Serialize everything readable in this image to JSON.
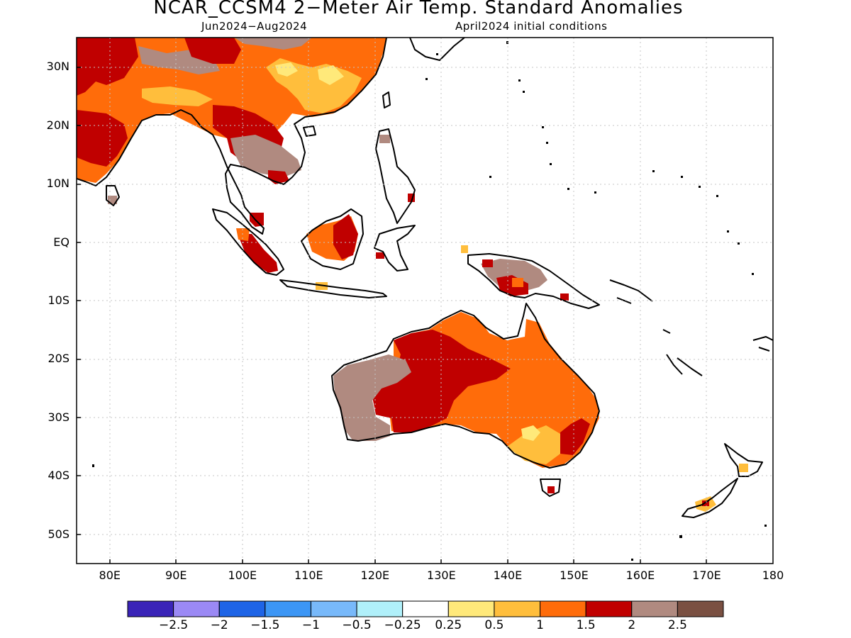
{
  "title": "NCAR_CCSM4 2−Meter Air Temp. Standard Anomalies",
  "subtitle_left": "Jun2024−Aug2024",
  "subtitle_right": "April2024 initial conditions",
  "map": {
    "projection": "equirectangular",
    "lon_range": [
      75,
      180
    ],
    "lat_range": [
      -55,
      35
    ],
    "gridlines": "dotted",
    "y_ticks": [
      {
        "lat": 30,
        "label": "30N"
      },
      {
        "lat": 20,
        "label": "20N"
      },
      {
        "lat": 10,
        "label": "10N"
      },
      {
        "lat": 0,
        "label": "EQ"
      },
      {
        "lat": -10,
        "label": "10S"
      },
      {
        "lat": -20,
        "label": "20S"
      },
      {
        "lat": -30,
        "label": "30S"
      },
      {
        "lat": -40,
        "label": "40S"
      },
      {
        "lat": -50,
        "label": "50S"
      }
    ],
    "x_ticks": [
      {
        "lon": 80,
        "label": "80E"
      },
      {
        "lon": 90,
        "label": "90E"
      },
      {
        "lon": 100,
        "label": "100E"
      },
      {
        "lon": 110,
        "label": "110E"
      },
      {
        "lon": 120,
        "label": "120E"
      },
      {
        "lon": 130,
        "label": "130E"
      },
      {
        "lon": 140,
        "label": "140E"
      },
      {
        "lon": 150,
        "label": "150E"
      },
      {
        "lon": 160,
        "label": "160E"
      },
      {
        "lon": 170,
        "label": "170E"
      },
      {
        "lon": 180,
        "label": "180"
      }
    ]
  },
  "colorbar": {
    "colors": [
      "#3a24b8",
      "#9b89f5",
      "#1e64e6",
      "#3c96f5",
      "#78b9fa",
      "#b0f0fa",
      "#ffffff",
      "#ffe97a",
      "#ffbe3c",
      "#ff6c0a",
      "#c00000",
      "#b08a80",
      "#7a5042"
    ],
    "labels": [
      "−2.5",
      "−2",
      "−1.5",
      "−1",
      "−0.5",
      "−0.25",
      "0.25",
      "0.5",
      "1",
      "1.5",
      "2",
      "2.5"
    ]
  },
  "anomaly_colors": {
    "light_yellow": "#ffe97a",
    "yellow_orange": "#ffbe3c",
    "orange": "#ff6c0a",
    "dark_red": "#c00000",
    "taupe": "#b08a80"
  }
}
